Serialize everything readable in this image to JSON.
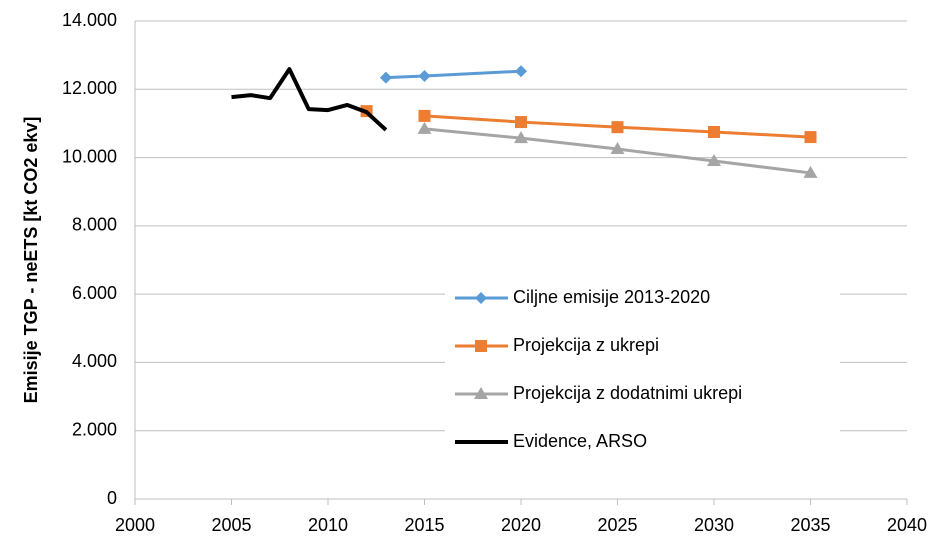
{
  "chart_data": {
    "type": "line",
    "y_label": "Emisije TGP - neETS [kt CO2 ekv]",
    "xlim": [
      2000,
      2040
    ],
    "xticks": [
      2000,
      2005,
      2010,
      2015,
      2020,
      2025,
      2030,
      2035,
      2040
    ],
    "ylim": [
      0,
      14000
    ],
    "yticks": [
      0,
      {
        "value": 2000,
        "label": "2.000"
      },
      {
        "value": 4000,
        "label": "4.000"
      },
      {
        "value": 6000,
        "label": "6.000"
      },
      {
        "value": 8000,
        "label": "8.000"
      },
      {
        "value": 10000,
        "label": "10.000"
      },
      {
        "value": 12000,
        "label": "12.000"
      },
      {
        "value": 14000,
        "label": "14.000"
      }
    ],
    "grid": true,
    "legend": "center",
    "series": [
      {
        "name": "Ciljne emisije 2013-2020",
        "color": "#5b9bd5",
        "marker": "diamond",
        "x": [
          2013,
          2015,
          2020
        ],
        "values": [
          12340,
          12390,
          12530
        ]
      },
      {
        "name": "Projekcija z ukrepi",
        "color": "#ed7d31",
        "marker": "square",
        "x": [
          2012,
          2013,
          2015,
          2020,
          2025,
          2030,
          2035
        ],
        "values": [
          11360,
          null,
          11220,
          11040,
          10890,
          10750,
          10600
        ]
      },
      {
        "name": "Projekcija z dodatnimi ukrepi",
        "color": "#a5a5a5",
        "marker": "triangle",
        "x": [
          2015,
          2020,
          2025,
          2030,
          2035
        ],
        "values": [
          10840,
          10570,
          10250,
          9900,
          9550
        ]
      },
      {
        "name": "Evidence, ARSO",
        "color": "#000000",
        "marker": "none",
        "x": [
          2005,
          2006,
          2007,
          2008,
          2009,
          2010,
          2011,
          2012,
          2013
        ],
        "values": [
          11770,
          11830,
          11740,
          12590,
          11420,
          11390,
          11540,
          11330,
          10810
        ]
      }
    ]
  }
}
